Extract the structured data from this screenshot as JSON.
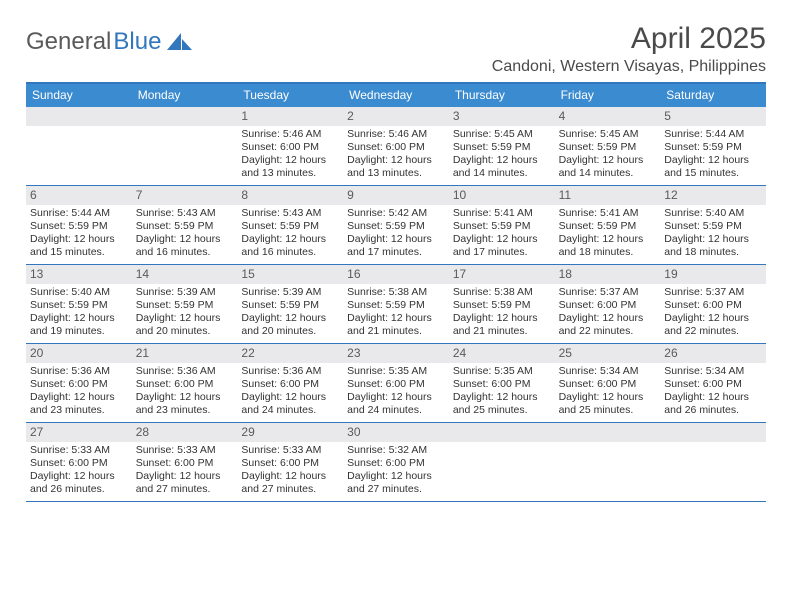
{
  "colors": {
    "header_bar": "#3b8bd0",
    "header_rule": "#3277bd",
    "daynum_bg": "#e9e9eb",
    "text": "#333333",
    "muted": "#5a5a5a",
    "logo_blue": "#3277bd",
    "background": "#ffffff"
  },
  "logo": {
    "part1": "General",
    "part2": "Blue"
  },
  "title": {
    "month": "April 2025",
    "location": "Candoni, Western Visayas, Philippines"
  },
  "day_names": [
    "Sunday",
    "Monday",
    "Tuesday",
    "Wednesday",
    "Thursday",
    "Friday",
    "Saturday"
  ],
  "layout": {
    "first_weekday_index": 2,
    "days_in_month": 30
  },
  "days": {
    "1": {
      "sunrise": "5:46 AM",
      "sunset": "6:00 PM",
      "daylight": "12 hours and 13 minutes."
    },
    "2": {
      "sunrise": "5:46 AM",
      "sunset": "6:00 PM",
      "daylight": "12 hours and 13 minutes."
    },
    "3": {
      "sunrise": "5:45 AM",
      "sunset": "5:59 PM",
      "daylight": "12 hours and 14 minutes."
    },
    "4": {
      "sunrise": "5:45 AM",
      "sunset": "5:59 PM",
      "daylight": "12 hours and 14 minutes."
    },
    "5": {
      "sunrise": "5:44 AM",
      "sunset": "5:59 PM",
      "daylight": "12 hours and 15 minutes."
    },
    "6": {
      "sunrise": "5:44 AM",
      "sunset": "5:59 PM",
      "daylight": "12 hours and 15 minutes."
    },
    "7": {
      "sunrise": "5:43 AM",
      "sunset": "5:59 PM",
      "daylight": "12 hours and 16 minutes."
    },
    "8": {
      "sunrise": "5:43 AM",
      "sunset": "5:59 PM",
      "daylight": "12 hours and 16 minutes."
    },
    "9": {
      "sunrise": "5:42 AM",
      "sunset": "5:59 PM",
      "daylight": "12 hours and 17 minutes."
    },
    "10": {
      "sunrise": "5:41 AM",
      "sunset": "5:59 PM",
      "daylight": "12 hours and 17 minutes."
    },
    "11": {
      "sunrise": "5:41 AM",
      "sunset": "5:59 PM",
      "daylight": "12 hours and 18 minutes."
    },
    "12": {
      "sunrise": "5:40 AM",
      "sunset": "5:59 PM",
      "daylight": "12 hours and 18 minutes."
    },
    "13": {
      "sunrise": "5:40 AM",
      "sunset": "5:59 PM",
      "daylight": "12 hours and 19 minutes."
    },
    "14": {
      "sunrise": "5:39 AM",
      "sunset": "5:59 PM",
      "daylight": "12 hours and 20 minutes."
    },
    "15": {
      "sunrise": "5:39 AM",
      "sunset": "5:59 PM",
      "daylight": "12 hours and 20 minutes."
    },
    "16": {
      "sunrise": "5:38 AM",
      "sunset": "5:59 PM",
      "daylight": "12 hours and 21 minutes."
    },
    "17": {
      "sunrise": "5:38 AM",
      "sunset": "5:59 PM",
      "daylight": "12 hours and 21 minutes."
    },
    "18": {
      "sunrise": "5:37 AM",
      "sunset": "6:00 PM",
      "daylight": "12 hours and 22 minutes."
    },
    "19": {
      "sunrise": "5:37 AM",
      "sunset": "6:00 PM",
      "daylight": "12 hours and 22 minutes."
    },
    "20": {
      "sunrise": "5:36 AM",
      "sunset": "6:00 PM",
      "daylight": "12 hours and 23 minutes."
    },
    "21": {
      "sunrise": "5:36 AM",
      "sunset": "6:00 PM",
      "daylight": "12 hours and 23 minutes."
    },
    "22": {
      "sunrise": "5:36 AM",
      "sunset": "6:00 PM",
      "daylight": "12 hours and 24 minutes."
    },
    "23": {
      "sunrise": "5:35 AM",
      "sunset": "6:00 PM",
      "daylight": "12 hours and 24 minutes."
    },
    "24": {
      "sunrise": "5:35 AM",
      "sunset": "6:00 PM",
      "daylight": "12 hours and 25 minutes."
    },
    "25": {
      "sunrise": "5:34 AM",
      "sunset": "6:00 PM",
      "daylight": "12 hours and 25 minutes."
    },
    "26": {
      "sunrise": "5:34 AM",
      "sunset": "6:00 PM",
      "daylight": "12 hours and 26 minutes."
    },
    "27": {
      "sunrise": "5:33 AM",
      "sunset": "6:00 PM",
      "daylight": "12 hours and 26 minutes."
    },
    "28": {
      "sunrise": "5:33 AM",
      "sunset": "6:00 PM",
      "daylight": "12 hours and 27 minutes."
    },
    "29": {
      "sunrise": "5:33 AM",
      "sunset": "6:00 PM",
      "daylight": "12 hours and 27 minutes."
    },
    "30": {
      "sunrise": "5:32 AM",
      "sunset": "6:00 PM",
      "daylight": "12 hours and 27 minutes."
    }
  },
  "labels": {
    "sunrise": "Sunrise:",
    "sunset": "Sunset:",
    "daylight": "Daylight:"
  }
}
